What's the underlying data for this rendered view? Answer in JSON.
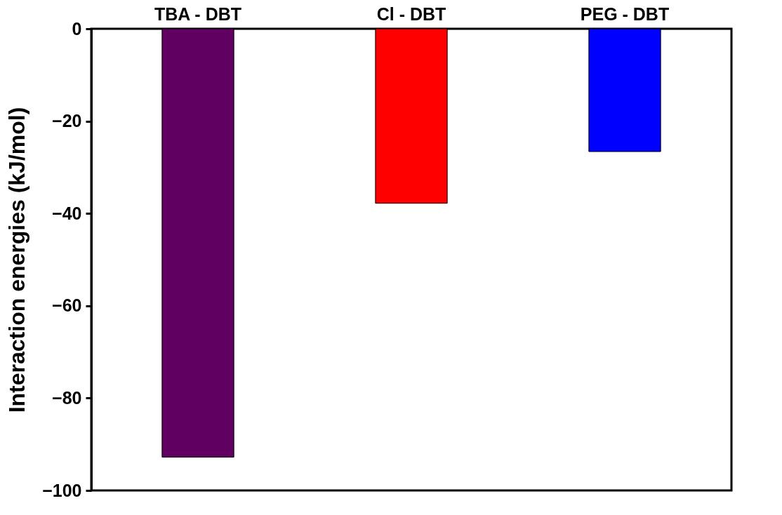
{
  "chart_data": {
    "type": "bar",
    "ylabel": "Interaction energies (kJ/mol)",
    "categories": [
      "TBA - DBT",
      "Cl - DBT",
      "PEG - DBT"
    ],
    "values": [
      -92.8,
      -37.8,
      -26.6
    ],
    "colors": [
      "#600060",
      "#ff0000",
      "#0000ff"
    ],
    "ylim": [
      -100,
      0
    ],
    "yticks": [
      -100,
      -80,
      -60,
      -40,
      -20,
      0
    ],
    "grid": false,
    "legend": false
  }
}
